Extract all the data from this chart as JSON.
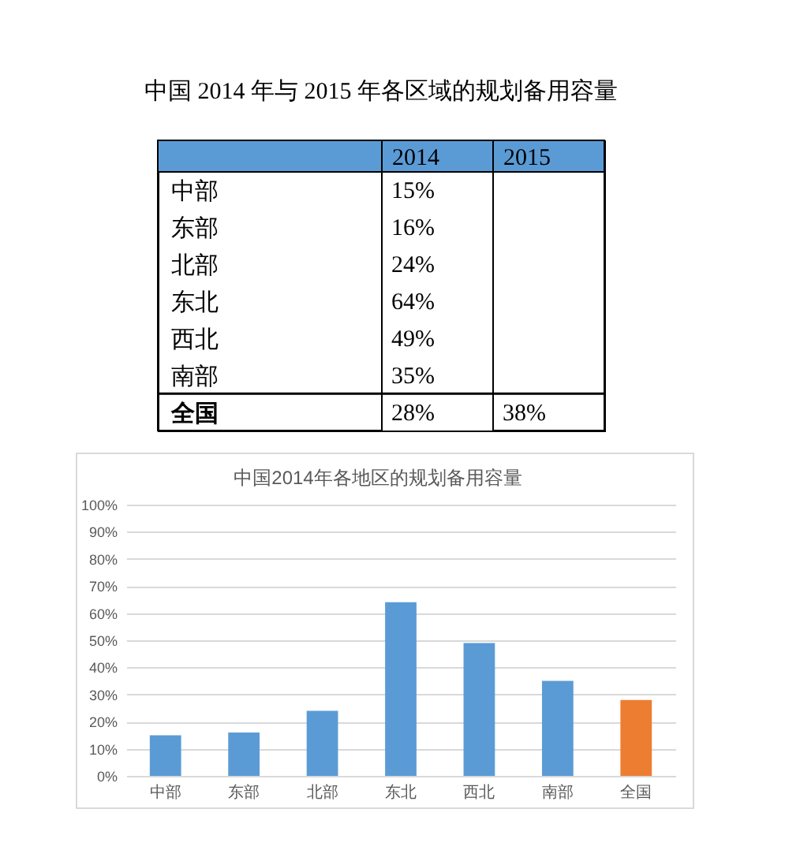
{
  "chart_data": [
    {
      "type": "heatmap",
      "title": "中国 2014 年与 2015 年各区域的规划备用容量",
      "categories": [
        "2014",
        "2015"
      ],
      "y_categories": [
        "中部",
        "东部",
        "北部",
        "东北",
        "西北",
        "南部",
        "全国"
      ],
      "cells": [
        [
          15,
          null
        ],
        [
          16,
          null
        ],
        [
          24,
          null
        ],
        [
          64,
          null
        ],
        [
          49,
          null
        ],
        [
          35,
          null
        ],
        [
          28,
          38
        ]
      ],
      "cell_labels": [
        [
          "15%",
          null
        ],
        [
          "16%",
          null
        ],
        [
          "24%",
          null
        ],
        [
          "64%",
          null
        ],
        [
          "49%",
          null
        ],
        [
          "35%",
          null
        ],
        [
          "28%",
          "38%"
        ]
      ]
    },
    {
      "type": "bar",
      "title": "中国2014年各地区的规划备用容量",
      "categories": [
        "中部",
        "东部",
        "北部",
        "东北",
        "西北",
        "南部",
        "全国"
      ],
      "values": [
        15,
        16,
        24,
        64,
        49,
        35,
        28
      ],
      "colors": [
        "#5b9bd5",
        "#5b9bd5",
        "#5b9bd5",
        "#5b9bd5",
        "#5b9bd5",
        "#5b9bd5",
        "#ed7d31"
      ],
      "ylim": [
        0,
        100
      ],
      "yticks": [
        {
          "value": 0,
          "label": "0%"
        },
        {
          "value": 10,
          "label": "10%"
        },
        {
          "value": 20,
          "label": "20%"
        },
        {
          "value": 30,
          "label": "30%"
        },
        {
          "value": 40,
          "label": "40%"
        },
        {
          "value": 50,
          "label": "50%"
        },
        {
          "value": 60,
          "label": "60%"
        },
        {
          "value": 70,
          "label": "70%"
        },
        {
          "value": 80,
          "label": "80%"
        },
        {
          "value": 90,
          "label": "90%"
        },
        {
          "value": 100,
          "label": "100%"
        }
      ],
      "grid": "y"
    }
  ]
}
